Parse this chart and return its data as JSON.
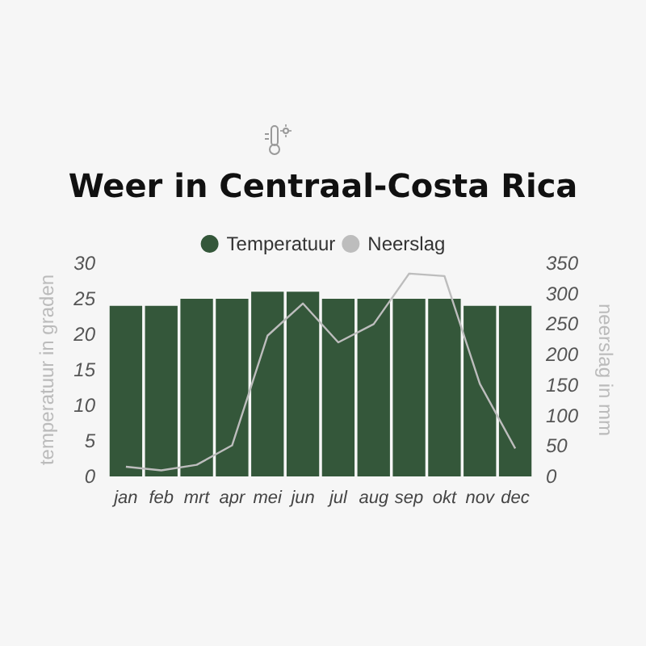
{
  "chart_data": {
    "type": "bar",
    "title": "Weer in Centraal-Costa Rica",
    "ylabel": "temperatuur in graden",
    "y2label": "neerslag in mm",
    "categories": [
      "jan",
      "feb",
      "mrt",
      "apr",
      "mei",
      "jun",
      "jul",
      "aug",
      "sep",
      "okt",
      "nov",
      "dec"
    ],
    "series": [
      {
        "name": "Temperatuur",
        "color": "#34573a",
        "values": [
          24,
          24,
          25,
          25,
          26,
          26,
          25,
          25,
          25,
          25,
          24,
          24
        ]
      },
      {
        "name": "Neerslag",
        "type": "line",
        "axis": "y2",
        "color": "#bdbdbd",
        "values": [
          16,
          10,
          19,
          51,
          231,
          284,
          220,
          250,
          333,
          329,
          152,
          46
        ]
      }
    ],
    "ylim": [
      0,
      30
    ],
    "yticks": [
      0,
      5,
      10,
      15,
      20,
      25,
      30
    ],
    "y2lim": [
      0,
      350
    ],
    "y2ticks": [
      0,
      50,
      100,
      150,
      200,
      250,
      300,
      350
    ],
    "legend": "top",
    "grid": false,
    "marker": "none"
  }
}
